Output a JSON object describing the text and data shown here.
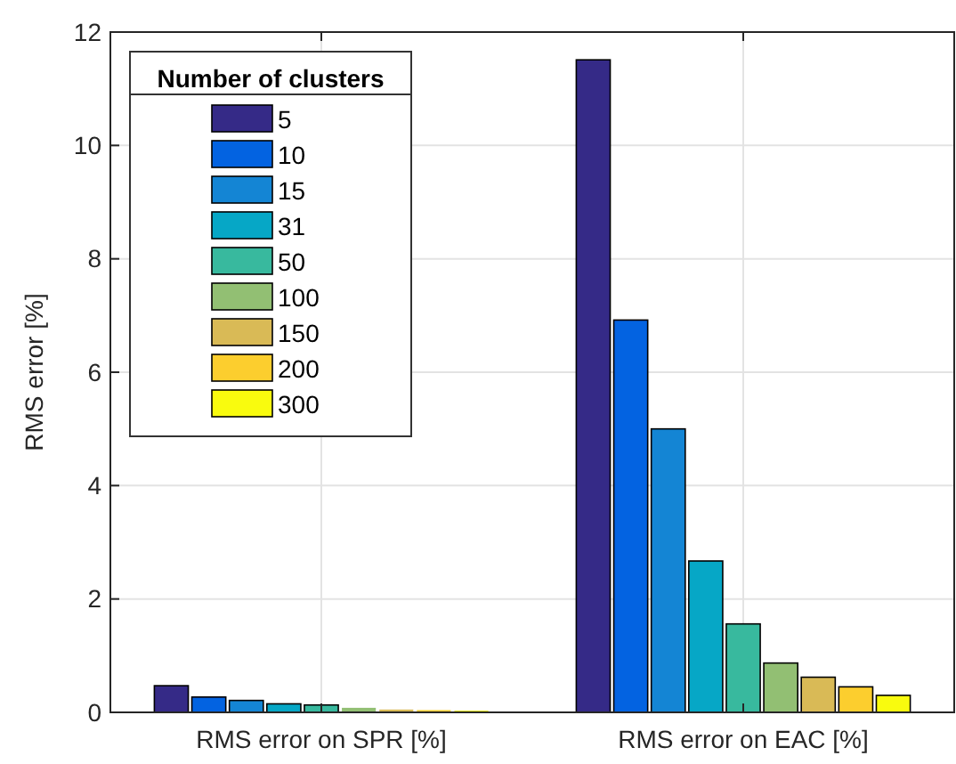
{
  "chart_data": {
    "type": "bar",
    "ylabel": "RMS error [%]",
    "categories": [
      "RMS error on SPR [%]",
      "RMS error on EAC [%]"
    ],
    "legend_title": "Number of clusters",
    "legend": "top left",
    "grid": true,
    "ylim": [
      0,
      12
    ],
    "yticks": [
      0,
      2,
      4,
      6,
      8,
      10,
      12
    ],
    "series": [
      {
        "name": "5",
        "color": "#352a87",
        "values": [
          0.47,
          11.51
        ]
      },
      {
        "name": "10",
        "color": "#0363e1",
        "values": [
          0.27,
          6.92
        ]
      },
      {
        "name": "15",
        "color": "#1485d4",
        "values": [
          0.21,
          5.0
        ]
      },
      {
        "name": "31",
        "color": "#06a7c6",
        "values": [
          0.15,
          2.67
        ]
      },
      {
        "name": "50",
        "color": "#38b99e",
        "values": [
          0.13,
          1.56
        ]
      },
      {
        "name": "100",
        "color": "#92bf73",
        "values": [
          0.08,
          0.87
        ]
      },
      {
        "name": "150",
        "color": "#d9ba56",
        "values": [
          0.05,
          0.62
        ]
      },
      {
        "name": "200",
        "color": "#fcce2e",
        "values": [
          0.04,
          0.45
        ]
      },
      {
        "name": "300",
        "color": "#f9fb0e",
        "values": [
          0.03,
          0.3
        ]
      }
    ]
  }
}
